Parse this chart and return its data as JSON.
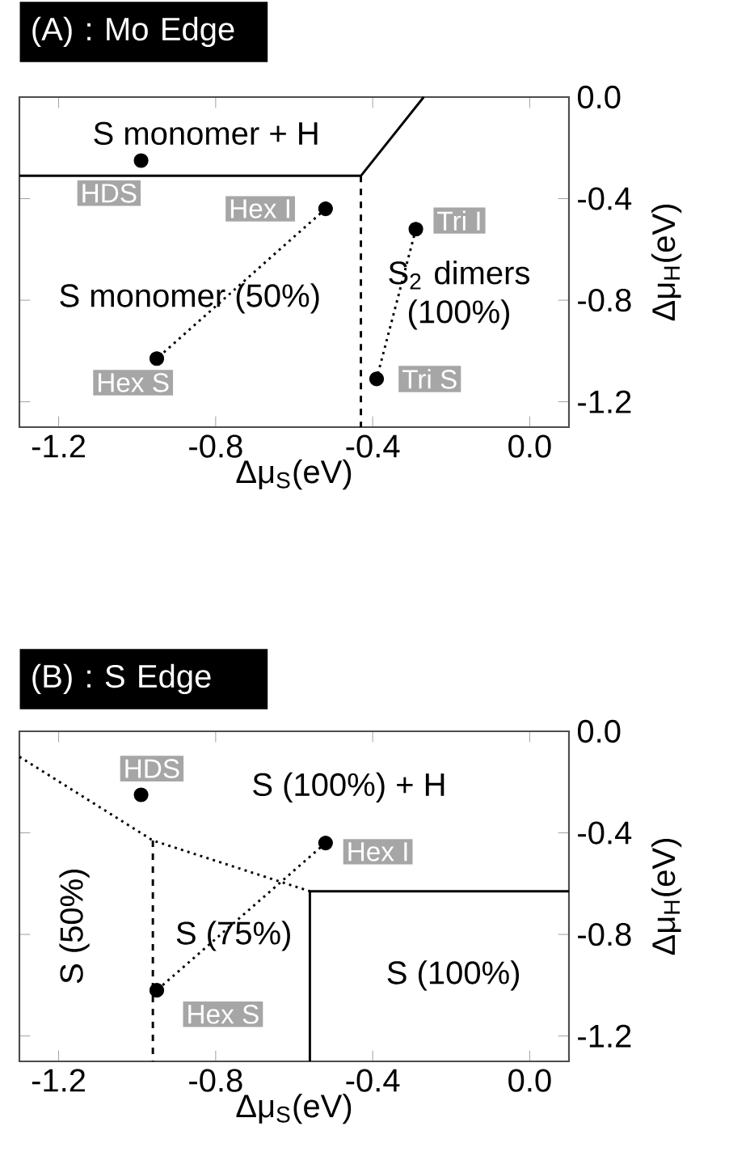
{
  "chart_data": [
    {
      "type": "scatter",
      "title": "(A) : Mo Edge",
      "xlabel": "Δμ$_{S}$(eV)",
      "ylabel": "Δμ$_{H}$(eV)",
      "xlim": [
        -1.3,
        0.1
      ],
      "ylim": [
        -1.3,
        0
      ],
      "xticks": [
        -1.2,
        -0.8,
        -0.4,
        {
          "value": 0,
          "label": "0.0"
        }
      ],
      "yticks": [
        {
          "value": 0,
          "label": "0.0"
        },
        -0.4,
        -0.8,
        -1.2
      ],
      "series": [
        {
          "type": "line",
          "color": "#000000",
          "line_style": "solid",
          "x": [
            -1.3,
            -0.43,
            -0.27
          ],
          "values": [
            -0.31,
            -0.31,
            0
          ]
        },
        {
          "type": "line",
          "color": "#000000",
          "line_style": "dashed",
          "x": [
            -0.43,
            -0.43
          ],
          "values": [
            -0.31,
            -1.3
          ]
        },
        {
          "type": "line",
          "color": "#000000",
          "line_style": "dotted",
          "x": [
            -0.52,
            -0.95
          ],
          "values": [
            -0.44,
            -1.03
          ]
        },
        {
          "type": "line",
          "color": "#000000",
          "line_style": "dotted",
          "x": [
            -0.29,
            -0.39
          ],
          "values": [
            -0.52,
            -1.11
          ]
        },
        {
          "name": "HDS",
          "color": "#000000",
          "marker": "circle",
          "x": [
            -0.99
          ],
          "values": [
            -0.25
          ]
        },
        {
          "name": "Hex I",
          "color": "#000000",
          "marker": "circle",
          "x": [
            -0.52
          ],
          "values": [
            -0.44
          ]
        },
        {
          "name": "Hex S",
          "color": "#000000",
          "marker": "circle",
          "x": [
            -0.95
          ],
          "values": [
            -1.03
          ]
        },
        {
          "name": "Tri I",
          "color": "#000000",
          "marker": "circle",
          "x": [
            -0.29
          ],
          "values": [
            -0.52
          ]
        },
        {
          "name": "Tri S",
          "color": "#000000",
          "marker": "circle",
          "x": [
            -0.39
          ],
          "values": [
            -1.11
          ]
        }
      ],
      "annotations": [
        "S monomer + H",
        "S monomer (50%)",
        "S$_{2}$ dimers (100%)"
      ]
    },
    {
      "type": "scatter",
      "title": "(B) : S Edge",
      "xlabel": "Δμ$_{S}$(eV)",
      "ylabel": "Δμ$_{H}$(eV)",
      "xlim": [
        -1.3,
        0.1
      ],
      "ylim": [
        -1.3,
        0
      ],
      "xticks": [
        -1.2,
        -0.8,
        -0.4,
        {
          "value": 0,
          "label": "0.0"
        }
      ],
      "yticks": [
        {
          "value": 0,
          "label": "0.0"
        },
        -0.4,
        -0.8,
        -1.2
      ],
      "series": [
        {
          "type": "line",
          "color": "#000000",
          "line_style": "dotted",
          "x": [
            -1.3,
            -0.96,
            -0.56
          ],
          "values": [
            -0.1,
            -0.43,
            -0.63
          ]
        },
        {
          "type": "line",
          "color": "#000000",
          "line_style": "dashed",
          "x": [
            -0.96,
            -0.96
          ],
          "values": [
            -0.43,
            -1.3
          ]
        },
        {
          "type": "line",
          "color": "#000000",
          "line_style": "solid",
          "x": [
            -0.56,
            -0.56,
            0.1
          ],
          "values": [
            -1.3,
            -0.63,
            -0.63
          ]
        },
        {
          "type": "line",
          "color": "#000000",
          "line_style": "dotted",
          "x": [
            -0.52,
            -0.95
          ],
          "values": [
            -0.44,
            -1.02
          ]
        },
        {
          "name": "HDS",
          "color": "#000000",
          "marker": "circle",
          "x": [
            -0.99
          ],
          "values": [
            -0.25
          ]
        },
        {
          "name": "Hex I",
          "color": "#000000",
          "marker": "circle",
          "x": [
            -0.52
          ],
          "values": [
            -0.44
          ]
        },
        {
          "name": "Hex S",
          "color": "#000000",
          "marker": "circle",
          "x": [
            -0.95
          ],
          "values": [
            -1.02
          ]
        }
      ],
      "annotations": [
        "S (100%) + H",
        "S (50%)",
        "S (75%)",
        "S (100%)"
      ]
    }
  ]
}
